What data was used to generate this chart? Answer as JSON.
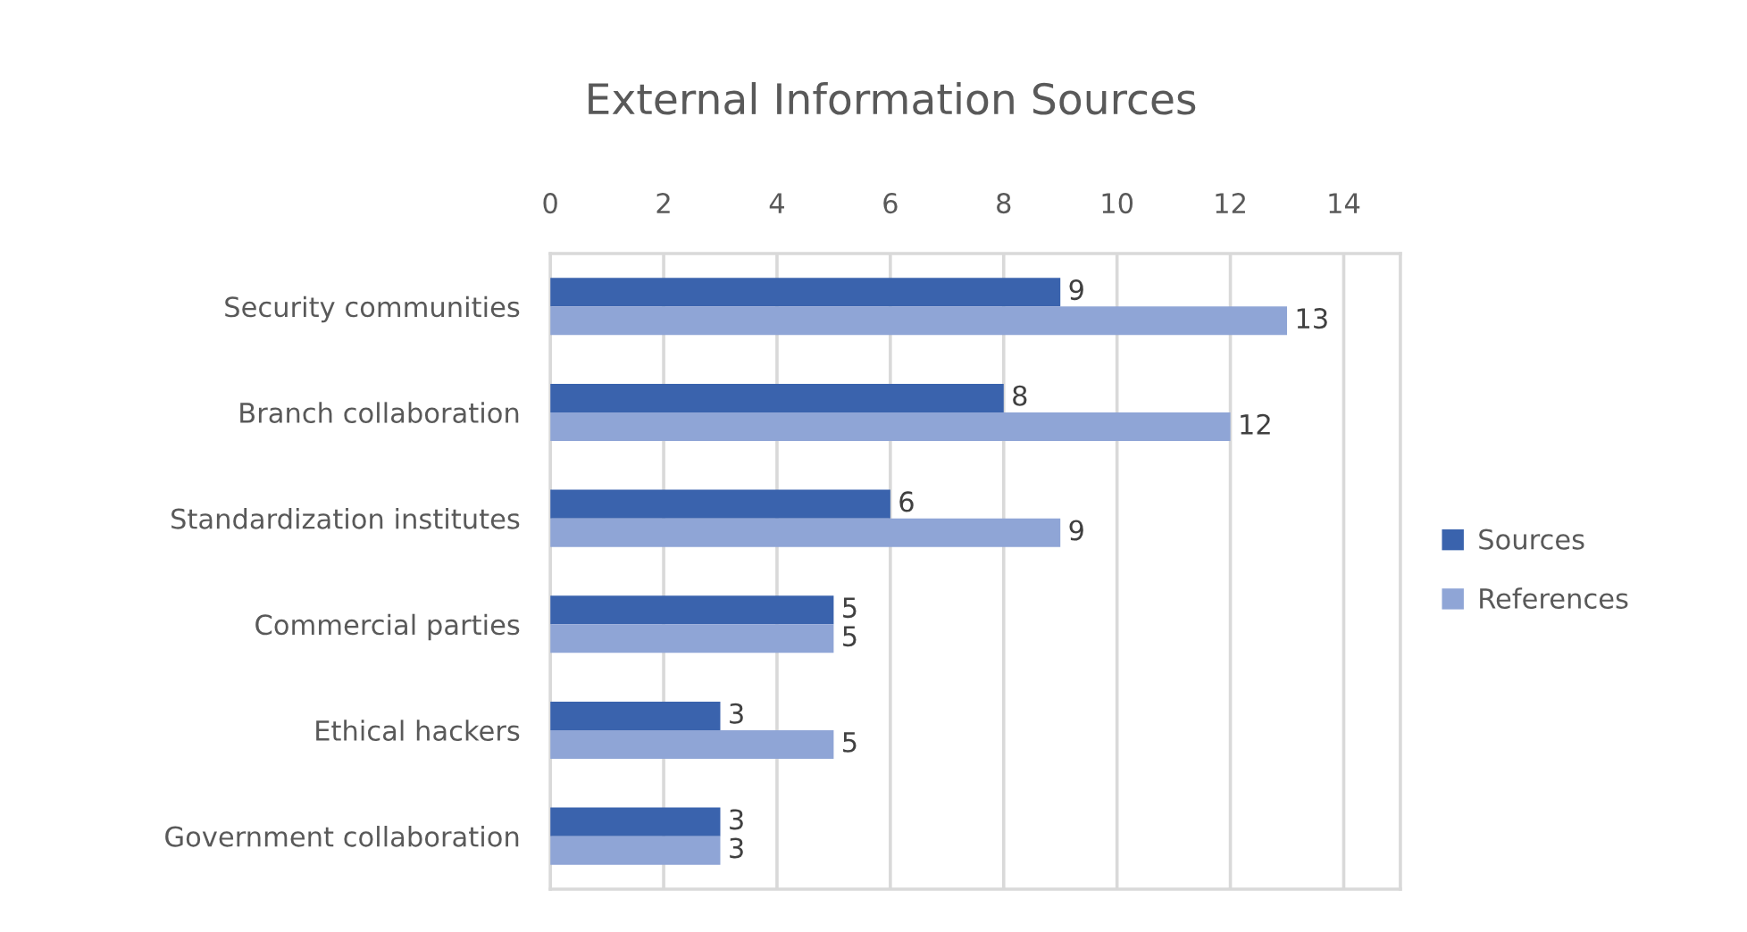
{
  "chart_data": {
    "type": "bar",
    "orientation": "horizontal",
    "title": "External Information Sources",
    "categories": [
      "Security communities",
      "Branch collaboration",
      "Standardization institutes",
      "Commercial parties",
      "Ethical hackers",
      "Government collaboration"
    ],
    "series": [
      {
        "name": "Sources",
        "color": "#3a63ad",
        "values": [
          9,
          8,
          6,
          5,
          3,
          3
        ]
      },
      {
        "name": "References",
        "color": "#8fa5d6",
        "values": [
          13,
          12,
          9,
          5,
          5,
          3
        ]
      }
    ],
    "xlim": [
      0,
      15
    ],
    "xticks": [
      0,
      2,
      4,
      6,
      8,
      10,
      12,
      14
    ],
    "grid": "x",
    "legend": "right",
    "data_labels": true
  }
}
